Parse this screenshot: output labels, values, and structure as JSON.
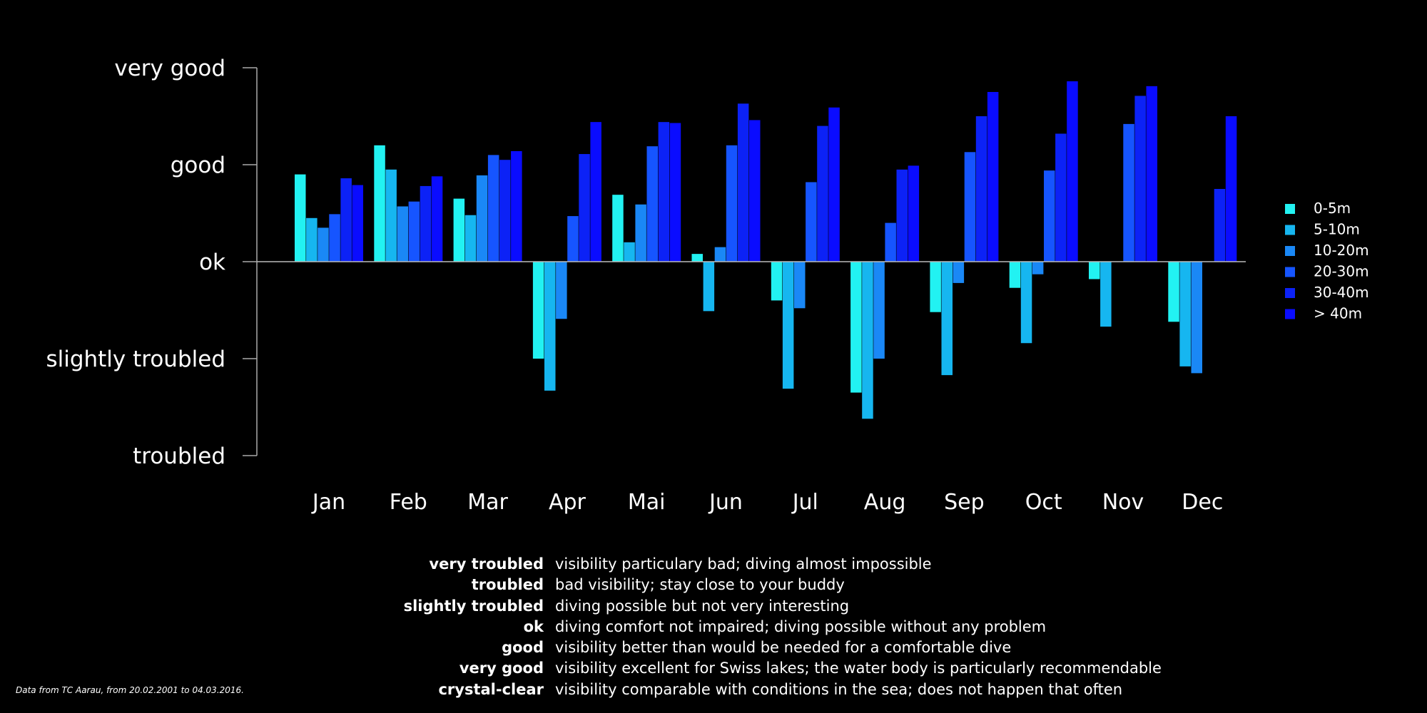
{
  "chart_data": {
    "type": "bar",
    "y_levels": [
      "troubled",
      "slightly troubled",
      "ok",
      "good",
      "very good"
    ],
    "ylim": [
      -2,
      2
    ],
    "categories": [
      "Jan",
      "Feb",
      "Mar",
      "Apr",
      "Mai",
      "Jun",
      "Jul",
      "Aug",
      "Sep",
      "Oct",
      "Nov",
      "Dec"
    ],
    "series": [
      {
        "name": "0-5m",
        "color": "#22f2f2",
        "values": [
          0.9,
          1.2,
          0.65,
          -1.0,
          0.69,
          0.08,
          -0.4,
          -1.35,
          -0.52,
          -0.27,
          -0.18,
          -0.62
        ]
      },
      {
        "name": "5-10m",
        "color": "#16b6f0",
        "values": [
          0.45,
          0.95,
          0.48,
          -1.33,
          0.2,
          -0.51,
          -1.31,
          -1.62,
          -1.17,
          -0.84,
          -0.67,
          -1.08
        ]
      },
      {
        "name": "10-20m",
        "color": "#1a88f6",
        "values": [
          0.35,
          0.57,
          0.89,
          -0.59,
          0.59,
          0.15,
          -0.48,
          -1.0,
          -0.22,
          -0.13,
          null,
          -1.15
        ]
      },
      {
        "name": "20-30m",
        "color": "#1655ff",
        "values": [
          0.49,
          0.62,
          1.1,
          0.47,
          1.19,
          1.2,
          0.82,
          0.4,
          1.13,
          0.94,
          1.42,
          null
        ]
      },
      {
        "name": "30-40m",
        "color": "#0c22f6",
        "values": [
          0.86,
          0.78,
          1.05,
          1.11,
          1.44,
          1.63,
          1.4,
          0.95,
          1.5,
          1.32,
          1.71,
          0.75
        ]
      },
      {
        "name": "> 40m",
        "color": "#0a0cff",
        "values": [
          0.79,
          0.88,
          1.14,
          1.44,
          1.43,
          1.46,
          1.59,
          0.99,
          1.75,
          1.86,
          1.81,
          1.5
        ]
      }
    ],
    "legend_position": "right",
    "grid": false
  },
  "definitions": [
    {
      "term": "very troubled",
      "text": "visibility particulary bad; diving almost impossible"
    },
    {
      "term": "troubled",
      "text": "bad visibility; stay close to your buddy"
    },
    {
      "term": "slightly troubled",
      "text": "diving possible but not very interesting"
    },
    {
      "term": "ok",
      "text": "diving comfort not impaired; diving possible without any problem"
    },
    {
      "term": "good",
      "text": "visibility better than would be needed for a comfortable dive"
    },
    {
      "term": "very good",
      "text": "visibility excellent for Swiss lakes; the water body is particularly recommendable"
    },
    {
      "term": "crystal-clear",
      "text": "visibility comparable with conditions in the sea; does not happen that often"
    }
  ],
  "source_note": "Data from TC Aarau, from 20.02.2001 to 04.03.2016."
}
